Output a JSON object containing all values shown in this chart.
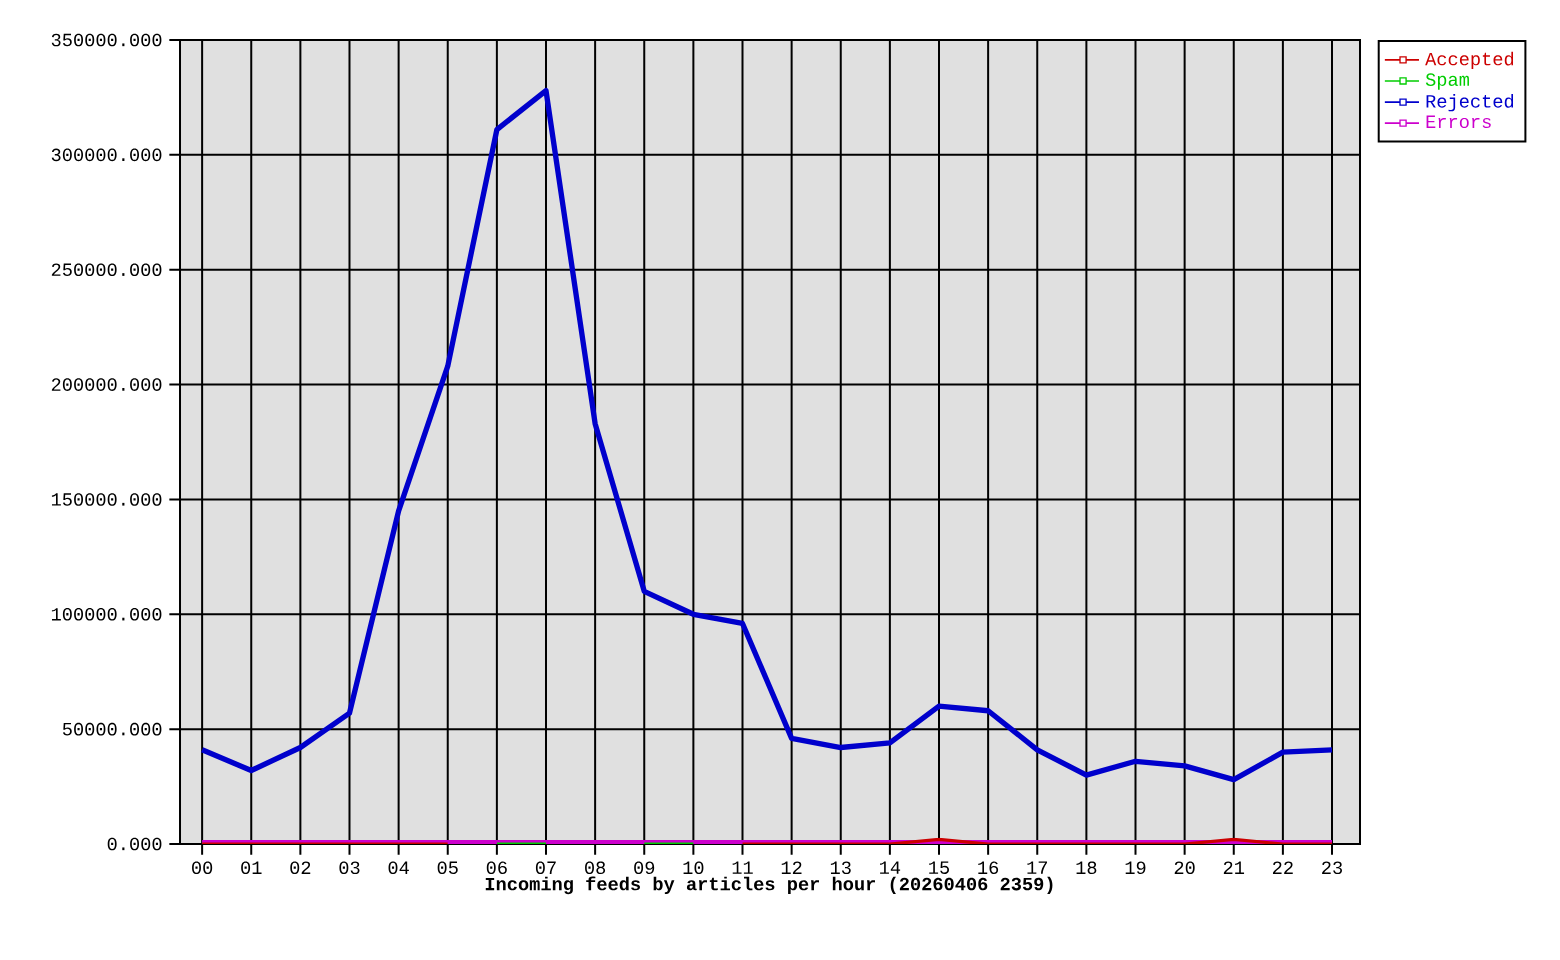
{
  "chart_data": {
    "type": "line",
    "xlabel": "Incoming feeds by articles per hour (20260406 2359)",
    "categories": [
      "00",
      "01",
      "02",
      "03",
      "04",
      "05",
      "06",
      "07",
      "08",
      "09",
      "10",
      "11",
      "12",
      "13",
      "14",
      "15",
      "16",
      "17",
      "18",
      "19",
      "20",
      "21",
      "22",
      "23"
    ],
    "series": [
      {
        "name": "Accepted",
        "color": "#cc0000",
        "values": [
          0,
          0,
          0,
          0,
          0,
          0,
          null,
          null,
          null,
          null,
          null,
          0,
          0,
          0,
          0,
          2000,
          0,
          0,
          0,
          0,
          0,
          2000,
          0,
          0
        ]
      },
      {
        "name": "Spam",
        "color": "#00cc00",
        "values": [
          null,
          null,
          null,
          null,
          null,
          null,
          0,
          0,
          null,
          0,
          0,
          null,
          null,
          null,
          null,
          null,
          null,
          null,
          null,
          null,
          null,
          null,
          null,
          null
        ]
      },
      {
        "name": "Rejected",
        "color": "#0000cc",
        "values": [
          41000,
          32000,
          42000,
          57000,
          145000,
          208000,
          311000,
          328000,
          183000,
          110000,
          100000,
          96000,
          46000,
          42000,
          44000,
          60000,
          58000,
          41000,
          30000,
          36000,
          34000,
          28000,
          40000,
          41000
        ]
      },
      {
        "name": "Errors",
        "color": "#cc00cc",
        "values": [
          0,
          0,
          0,
          0,
          0,
          0,
          0,
          0,
          0,
          0,
          0,
          0,
          0,
          0,
          0,
          0,
          0,
          0,
          0,
          0,
          0,
          0,
          0,
          0
        ]
      }
    ],
    "ylim": [
      0,
      350000
    ],
    "yticks": [
      {
        "value": 0,
        "label": "0.000"
      },
      {
        "value": 50000,
        "label": "50000.000"
      },
      {
        "value": 100000,
        "label": "100000.000"
      },
      {
        "value": 150000,
        "label": "150000.000"
      },
      {
        "value": 200000,
        "label": "200000.000"
      },
      {
        "value": 250000,
        "label": "250000.000"
      },
      {
        "value": 300000,
        "label": "300000.000"
      },
      {
        "value": 350000,
        "label": "350000.000"
      }
    ],
    "grid": true,
    "legend": "top right"
  }
}
